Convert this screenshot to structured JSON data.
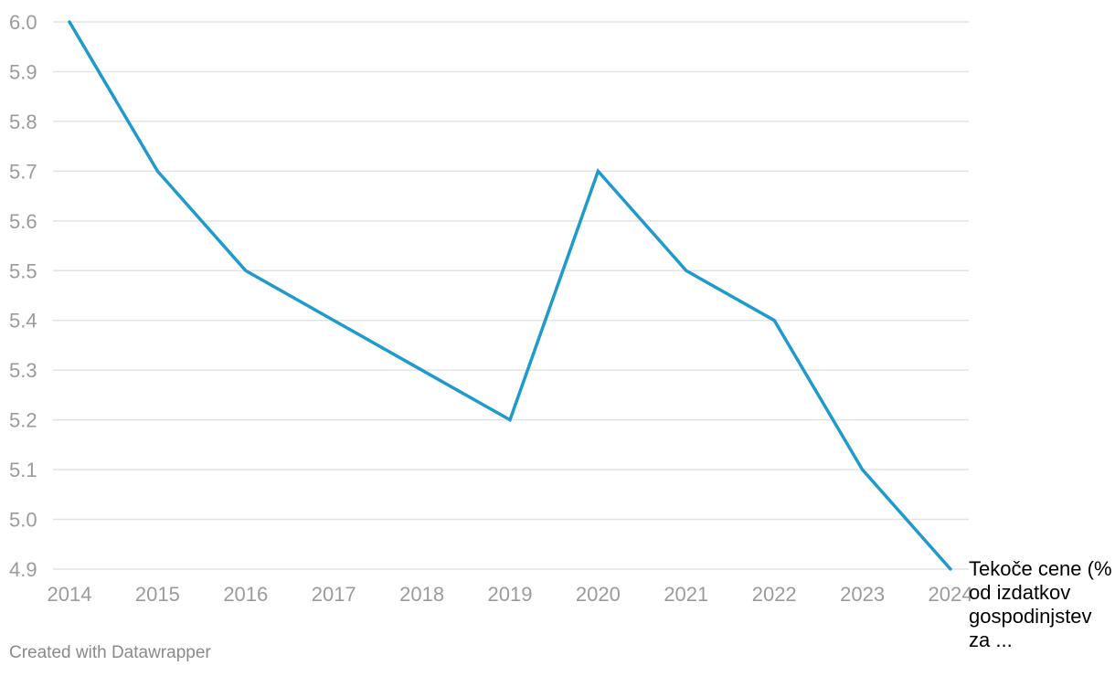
{
  "chart_data": {
    "type": "line",
    "categories": [
      "2014",
      "2015",
      "2016",
      "2017",
      "2018",
      "2019",
      "2020",
      "2021",
      "2022",
      "2023",
      "2024"
    ],
    "series": [
      {
        "name": "Tekoče cene (% od izdatkov gospodinjstev za ...",
        "values": [
          6.0,
          5.7,
          5.5,
          5.4,
          5.3,
          5.2,
          5.7,
          5.5,
          5.4,
          5.1,
          4.9
        ],
        "color": "#1f9bcb"
      }
    ],
    "y_ticks": [
      "6.0",
      "5.9",
      "5.8",
      "5.7",
      "5.6",
      "5.5",
      "5.4",
      "5.3",
      "5.2",
      "5.1",
      "5.0",
      "4.9"
    ],
    "ylim": [
      4.9,
      6.0
    ],
    "title": "",
    "xlabel": "",
    "ylabel": "",
    "grid": true,
    "legend": "end-of-line label"
  },
  "footer": {
    "credit": "Created with Datawrapper"
  }
}
